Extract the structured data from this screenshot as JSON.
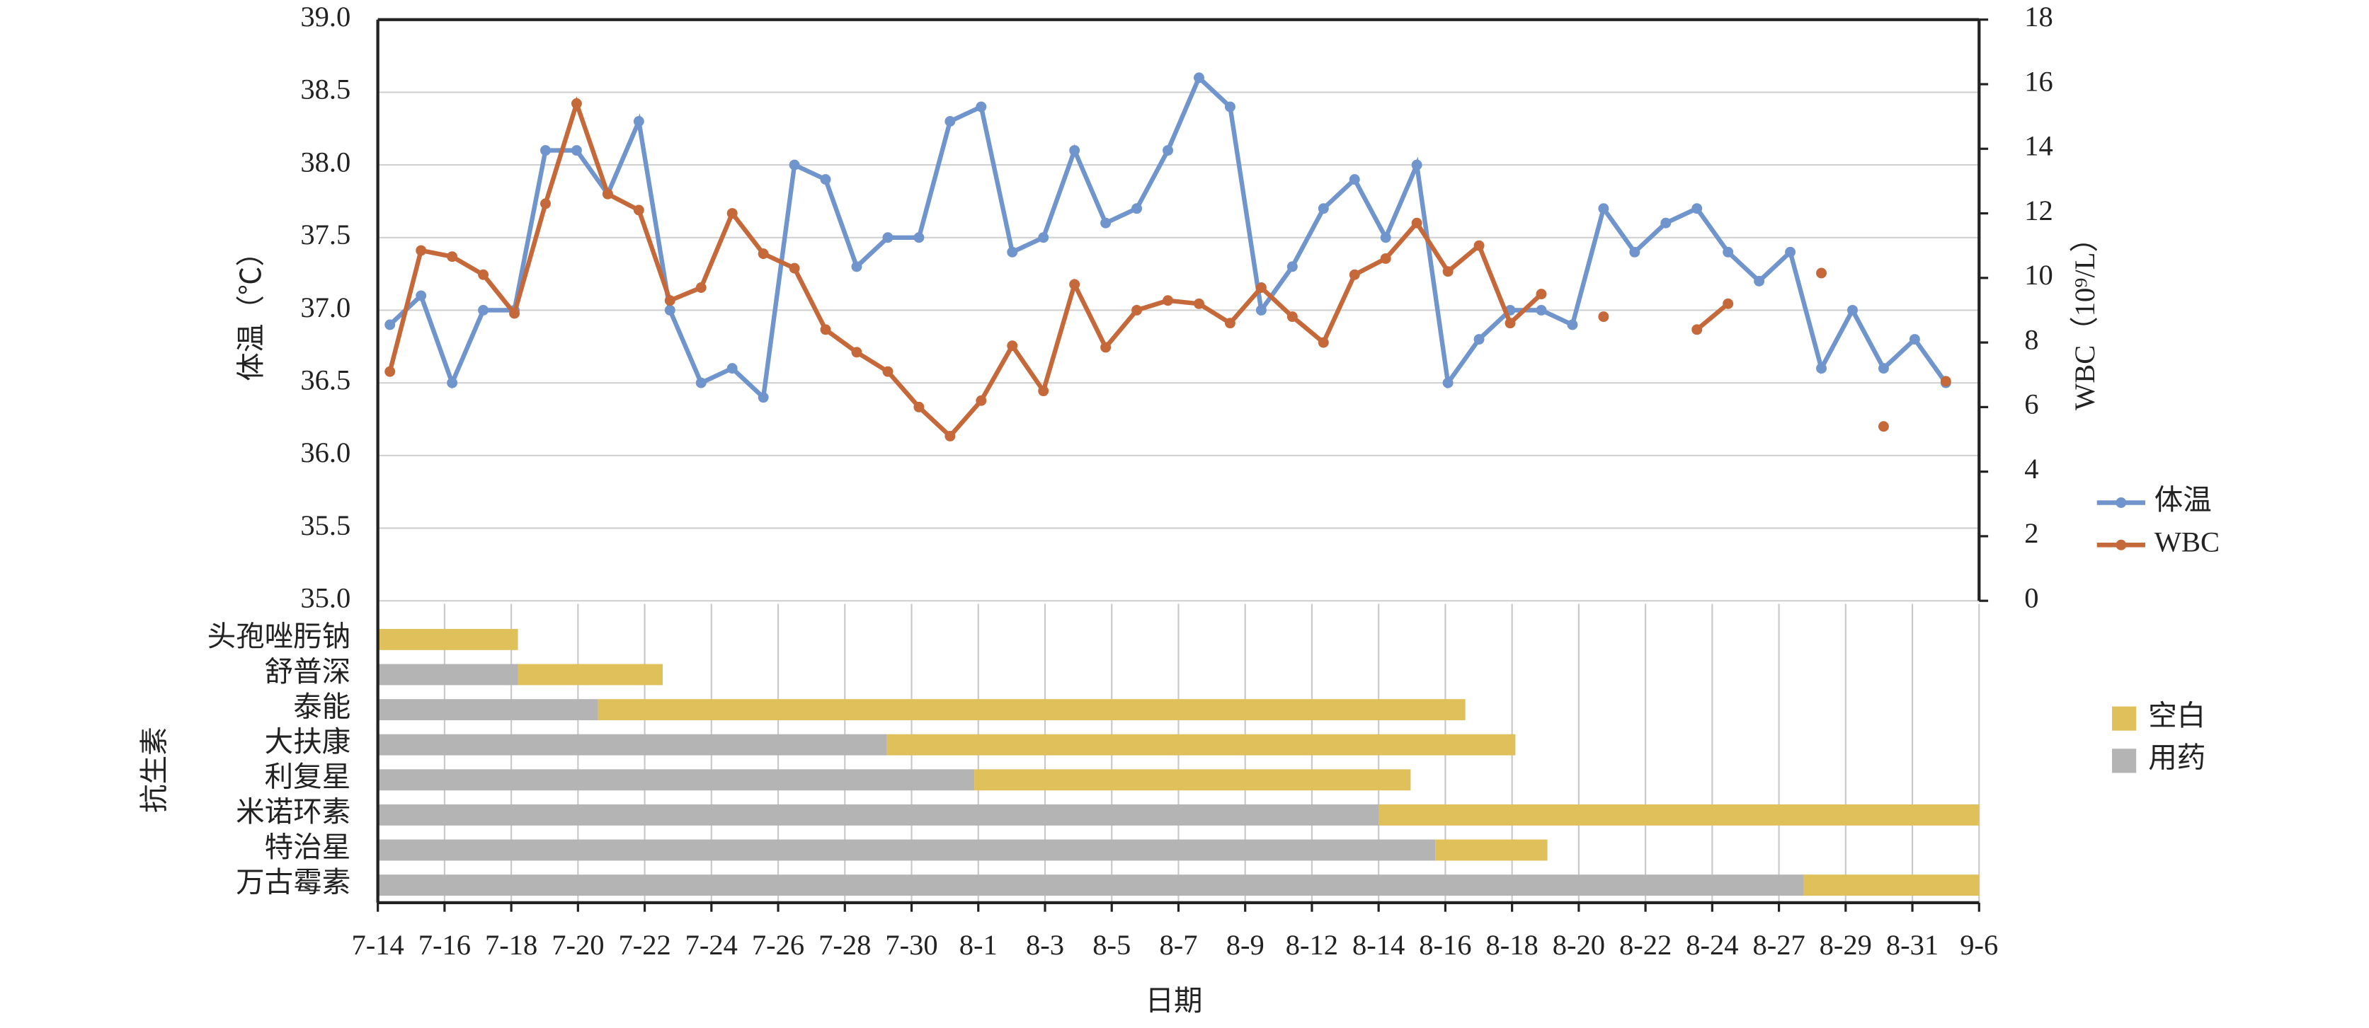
{
  "chart_data": [
    {
      "type": "line",
      "ylabel": "体温（℃）",
      "y2label": "WBC（10⁹/L）",
      "ylim": [
        35,
        39
      ],
      "yticks": [
        {
          "value": 35,
          "label": "35.0"
        },
        {
          "value": 35.5,
          "label": "35.5"
        },
        {
          "value": 36,
          "label": "36.0"
        },
        {
          "value": 36.5,
          "label": "36.5"
        },
        {
          "value": 37,
          "label": "37.0"
        },
        {
          "value": 37.5,
          "label": "37.5"
        },
        {
          "value": 38,
          "label": "38.0"
        },
        {
          "value": 38.5,
          "label": "38.5"
        },
        {
          "value": 39,
          "label": "39.0"
        }
      ],
      "y2lim": [
        0,
        18
      ],
      "y2ticks": [
        0,
        2,
        4,
        6,
        8,
        10,
        12,
        14,
        16,
        18
      ],
      "grid": true,
      "legend": "right",
      "series": [
        {
          "name": "体温",
          "color": "#7094cc",
          "values": [
            36.9,
            37.1,
            36.5,
            37.0,
            37.0,
            38.1,
            38.1,
            37.8,
            38.3,
            37.0,
            36.5,
            36.6,
            36.4,
            38.0,
            37.9,
            37.3,
            37.5,
            37.5,
            38.3,
            38.4,
            37.4,
            37.5,
            38.1,
            37.6,
            37.7,
            38.1,
            38.6,
            38.4,
            37.0,
            37.3,
            37.7,
            37.9,
            37.5,
            38.0,
            36.5,
            36.8,
            37.0,
            37.0,
            36.9,
            37.7,
            37.4,
            37.6,
            37.7,
            37.4,
            37.2,
            37.4,
            36.6,
            37.0,
            36.6,
            36.8,
            36.5
          ]
        },
        {
          "name": "WBC",
          "color": "#c5693a",
          "axis": "y2",
          "values": [
            7.1,
            10.85,
            10.66,
            10.1,
            8.9,
            12.3,
            15.4,
            12.6,
            12.1,
            9.3,
            9.7,
            12.0,
            10.75,
            10.3,
            8.4,
            7.7,
            7.1,
            6.0,
            5.1,
            6.2,
            7.9,
            6.5,
            9.8,
            7.85,
            9.0,
            9.3,
            9.2,
            8.6,
            9.7,
            8.8,
            8.0,
            10.1,
            10.6,
            11.7,
            10.2,
            11.0,
            8.6,
            9.5,
            null,
            8.8,
            null,
            null,
            8.4,
            9.2,
            null,
            null,
            10.15,
            null,
            5.4,
            null,
            6.8
          ]
        }
      ]
    },
    {
      "type": "bar",
      "orientation": "horizontal",
      "stacked": true,
      "xlabel": "日期",
      "ylabel": "抗生素",
      "categories": [
        "头孢唑肟钠",
        "舒普深",
        "泰能",
        "大扶康",
        "利复星",
        "米诺环素",
        "特治星",
        "万古霉素"
      ],
      "xlim": [
        0,
        24
      ],
      "xticks": [
        {
          "value": 0,
          "label": "7-14"
        },
        {
          "value": 1,
          "label": "7-16"
        },
        {
          "value": 2,
          "label": "7-18"
        },
        {
          "value": 3,
          "label": "7-20"
        },
        {
          "value": 4,
          "label": "7-22"
        },
        {
          "value": 5,
          "label": "7-24"
        },
        {
          "value": 6,
          "label": "7-26"
        },
        {
          "value": 7,
          "label": "7-28"
        },
        {
          "value": 8,
          "label": "7-30"
        },
        {
          "value": 9,
          "label": "8-1"
        },
        {
          "value": 10,
          "label": "8-3"
        },
        {
          "value": 11,
          "label": "8-5"
        },
        {
          "value": 12,
          "label": "8-7"
        },
        {
          "value": 13,
          "label": "8-9"
        },
        {
          "value": 14,
          "label": "8-12"
        },
        {
          "value": 15,
          "label": "8-14"
        },
        {
          "value": 16,
          "label": "8-16"
        },
        {
          "value": 17,
          "label": "8-18"
        },
        {
          "value": 18,
          "label": "8-20"
        },
        {
          "value": 19,
          "label": "8-22"
        },
        {
          "value": 20,
          "label": "8-24"
        },
        {
          "value": 21,
          "label": "8-27"
        },
        {
          "value": 22,
          "label": "8-29"
        },
        {
          "value": 23,
          "label": "8-31"
        },
        {
          "value": 24,
          "label": "9-6"
        }
      ],
      "grid": true,
      "legend": "right",
      "series": [
        {
          "name": "用药",
          "color": "#b4b4b4",
          "values": [
            0,
            2.1,
            3.3,
            7.63,
            8.94,
            15.0,
            15.85,
            21.37
          ]
        },
        {
          "name": "空白",
          "color": "#e0c05a",
          "values": [
            2.1,
            2.17,
            13.0,
            9.42,
            6.54,
            9.0,
            1.68,
            2.63
          ]
        }
      ]
    }
  ]
}
